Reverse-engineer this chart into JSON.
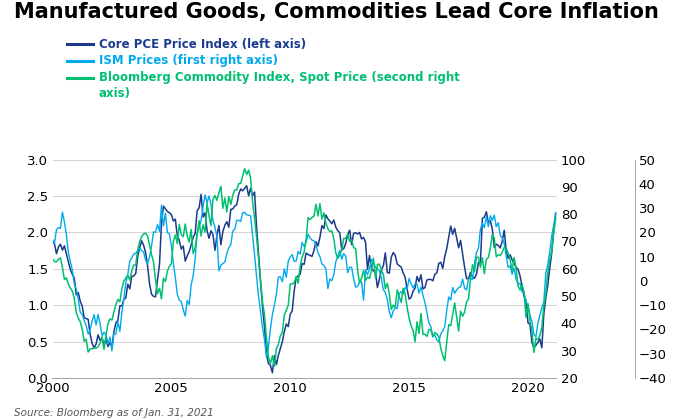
{
  "title": "Manufactured Goods, Commodities Lead Core Inflation",
  "source": "Source: Bloomberg as of Jan. 31, 2021",
  "legend": [
    {
      "label": "Core PCE Price Index (left axis)",
      "color": "#1a3a8c"
    },
    {
      "label": "ISM Prices (first right axis)",
      "color": "#00aaee"
    },
    {
      "label": "Bloomberg Commodity Index, Spot Price (second right\naxis)",
      "color": "#00c070"
    }
  ],
  "left_ylim": [
    0.0,
    3.0
  ],
  "left_yticks": [
    0.0,
    0.5,
    1.0,
    1.5,
    2.0,
    2.5,
    3.0
  ],
  "ism_ylim": [
    20,
    100
  ],
  "ism_yticks": [
    20,
    30,
    40,
    50,
    60,
    70,
    80,
    90,
    100
  ],
  "bloomberg_ylim": [
    -40,
    50
  ],
  "bloomberg_yticks": [
    -40,
    -30,
    -20,
    -10,
    0,
    10,
    20,
    30,
    40,
    50
  ],
  "xmin": 2000,
  "xmax": 2021.2,
  "xticks": [
    2000,
    2005,
    2010,
    2015,
    2020
  ],
  "background_color": "#ffffff",
  "grid_color": "#cccccc",
  "title_fontsize": 15,
  "legend_fontsize": 8.5,
  "tick_fontsize": 9.5
}
